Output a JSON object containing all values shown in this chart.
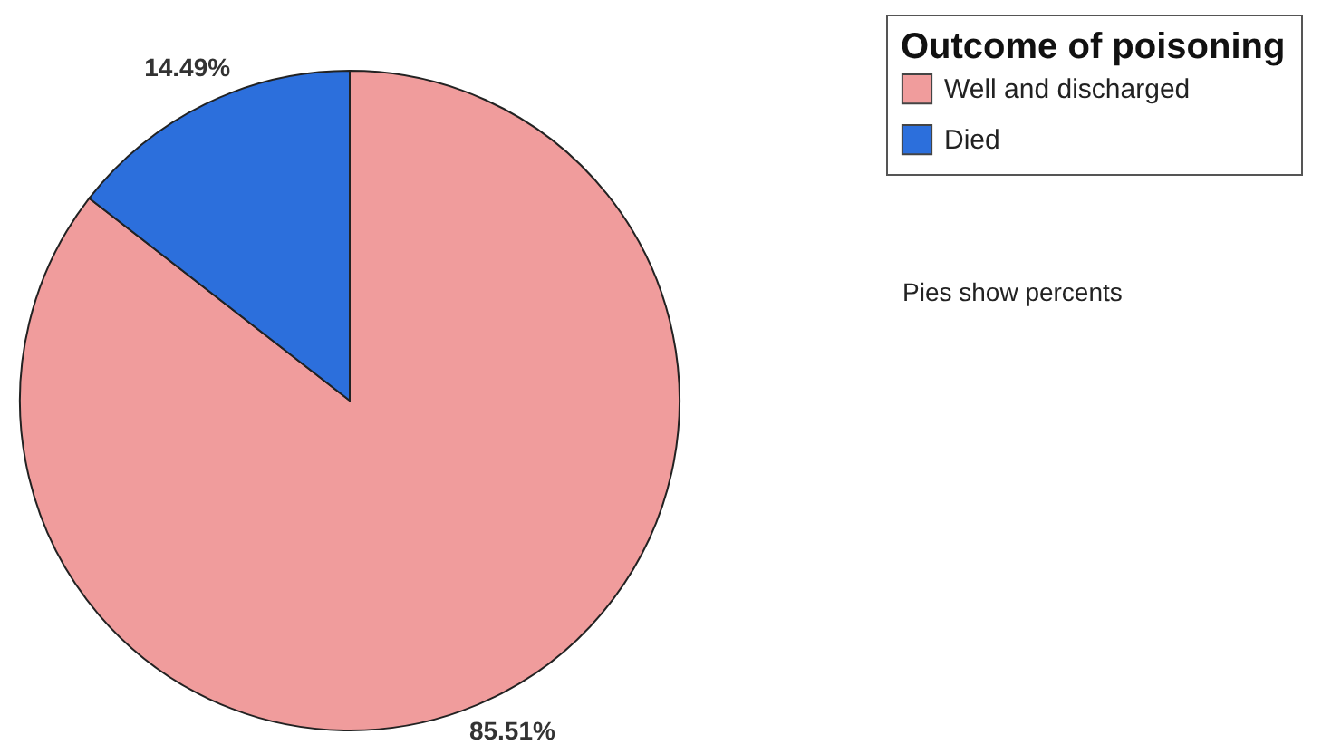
{
  "chart_data": {
    "type": "pie",
    "legend_title": "Outcome of poisoning",
    "categories": [
      "Well and discharged",
      "Died"
    ],
    "values": [
      85.51,
      14.49
    ],
    "colors": [
      "#f09c9c",
      "#2c6fdc"
    ],
    "value_labels": [
      "85.51%",
      "14.49%"
    ],
    "legend": "top right",
    "annotations": [
      "Pies show percents"
    ]
  }
}
